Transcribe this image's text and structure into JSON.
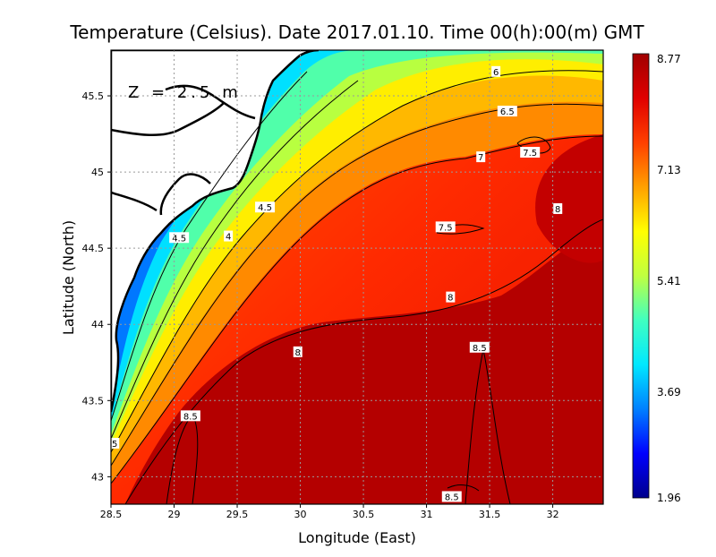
{
  "chart_data": {
    "type": "heatmap",
    "title": "Temperature (Celsius). Date 2017.01.10. Time 00(h):00(m) GMT",
    "xlabel": "Longitude (East)",
    "ylabel": "Latitude (North)",
    "annotation": "Z = 2.5 m",
    "xlim": [
      28.5,
      32.4
    ],
    "ylim": [
      42.82,
      45.8
    ],
    "x_ticks": [
      {
        "value": 28.5,
        "label": "28.5"
      },
      {
        "value": 29,
        "label": "29"
      },
      {
        "value": 29.5,
        "label": "29.5"
      },
      {
        "value": 30,
        "label": "30"
      },
      {
        "value": 30.5,
        "label": "30.5"
      },
      {
        "value": 31,
        "label": "31"
      },
      {
        "value": 31.5,
        "label": "31.5"
      },
      {
        "value": 32,
        "label": "32"
      }
    ],
    "y_ticks": [
      {
        "value": 43,
        "label": "43"
      },
      {
        "value": 43.5,
        "label": "43.5"
      },
      {
        "value": 44,
        "label": "44"
      },
      {
        "value": 44.5,
        "label": "44.5"
      },
      {
        "value": 45,
        "label": "45"
      },
      {
        "value": 45.5,
        "label": "45.5"
      }
    ],
    "grid": true,
    "colorbar": {
      "min": 1.96,
      "max": 8.77,
      "labels": [
        "8.77",
        "7.13",
        "5.41",
        "3.69",
        "1.96"
      ],
      "stops": [
        "#00008c",
        "#0000ff",
        "#0080ff",
        "#00e8ff",
        "#40ffc0",
        "#c0ff40",
        "#ffff00",
        "#ffa000",
        "#ff4000",
        "#e00000",
        "#a00000"
      ]
    },
    "contour_labels": [
      {
        "text": "4",
        "lon": 29.43,
        "lat": 44.58
      },
      {
        "text": "4.5",
        "lon": 29.04,
        "lat": 44.57
      },
      {
        "text": "4.5",
        "lon": 29.72,
        "lat": 44.77
      },
      {
        "text": "5",
        "lon": 28.53,
        "lat": 43.22
      },
      {
        "text": "6",
        "lon": 31.55,
        "lat": 45.66
      },
      {
        "text": "6.5",
        "lon": 31.64,
        "lat": 45.4
      },
      {
        "text": "7",
        "lon": 31.43,
        "lat": 45.1
      },
      {
        "text": "7.5",
        "lon": 31.82,
        "lat": 45.13
      },
      {
        "text": "7.5",
        "lon": 31.15,
        "lat": 44.64
      },
      {
        "text": "8",
        "lon": 32.04,
        "lat": 44.76
      },
      {
        "text": "8",
        "lon": 31.19,
        "lat": 44.18
      },
      {
        "text": "8",
        "lon": 29.98,
        "lat": 43.82
      },
      {
        "text": "8.5",
        "lon": 31.42,
        "lat": 43.85
      },
      {
        "text": "8.5",
        "lon": 29.13,
        "lat": 43.4
      },
      {
        "text": "8.5",
        "lon": 31.2,
        "lat": 42.87
      }
    ]
  }
}
